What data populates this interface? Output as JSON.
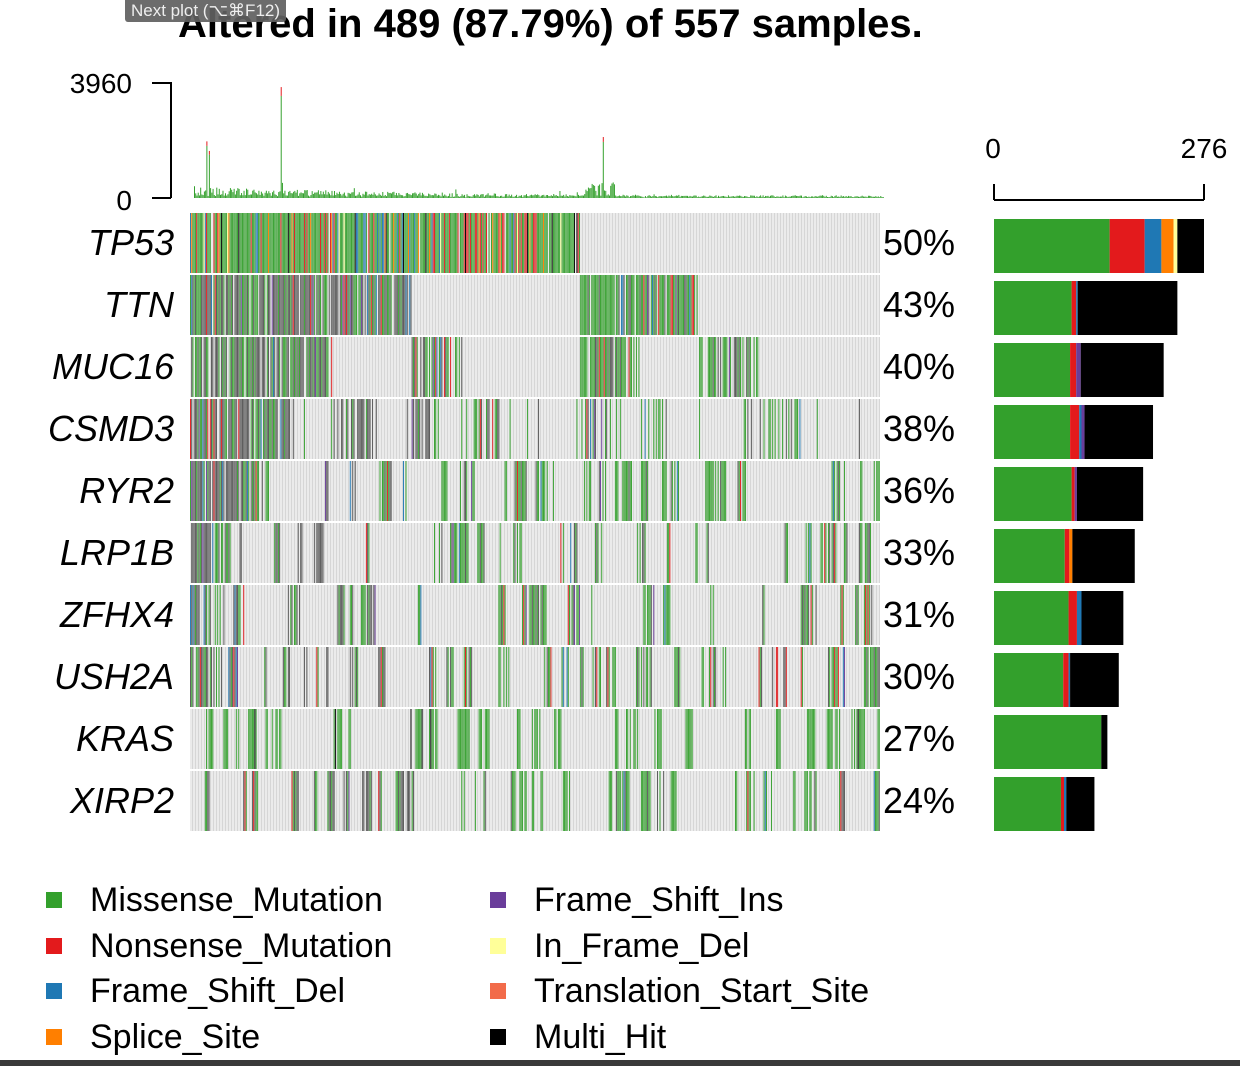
{
  "tooltip": "Next plot (⌥⌘F12)",
  "chart_data": {
    "type": "oncoplot",
    "title": "Altered in 489 (87.79%) of 557 samples.",
    "tmb_axis": {
      "min": 0,
      "max": 3960,
      "tick_labels": [
        "3960",
        "0"
      ]
    },
    "bar_axis": {
      "min": 0,
      "max": 276,
      "tick_labels": [
        "0",
        "276"
      ]
    },
    "genes": [
      {
        "name": "TP53",
        "pct": "50%",
        "pct_value": 50
      },
      {
        "name": "TTN",
        "pct": "43%",
        "pct_value": 43
      },
      {
        "name": "MUC16",
        "pct": "40%",
        "pct_value": 40
      },
      {
        "name": "CSMD3",
        "pct": "38%",
        "pct_value": 38
      },
      {
        "name": "RYR2",
        "pct": "36%",
        "pct_value": 36
      },
      {
        "name": "LRP1B",
        "pct": "33%",
        "pct_value": 33
      },
      {
        "name": "ZFHX4",
        "pct": "31%",
        "pct_value": 31
      },
      {
        "name": "USH2A",
        "pct": "30%",
        "pct_value": 30
      },
      {
        "name": "KRAS",
        "pct": "27%",
        "pct_value": 27
      },
      {
        "name": "XIRP2",
        "pct": "24%",
        "pct_value": 24
      }
    ],
    "gene_bars": [
      [
        {
          "type": "Missense_Mutation",
          "count": 152
        },
        {
          "type": "Nonsense_Mutation",
          "count": 46
        },
        {
          "type": "Frame_Shift_Del",
          "count": 22
        },
        {
          "type": "Splice_Site",
          "count": 16
        },
        {
          "type": "In_Frame_Del",
          "count": 5
        },
        {
          "type": "Multi_Hit",
          "count": 35
        }
      ],
      [
        {
          "type": "Missense_Mutation",
          "count": 102
        },
        {
          "type": "Nonsense_Mutation",
          "count": 6
        },
        {
          "type": "Frame_Shift_Del",
          "count": 2
        },
        {
          "type": "Multi_Hit",
          "count": 131
        }
      ],
      [
        {
          "type": "Missense_Mutation",
          "count": 100
        },
        {
          "type": "Nonsense_Mutation",
          "count": 8
        },
        {
          "type": "Frame_Shift_Ins",
          "count": 6
        },
        {
          "type": "Multi_Hit",
          "count": 109
        }
      ],
      [
        {
          "type": "Missense_Mutation",
          "count": 100
        },
        {
          "type": "Nonsense_Mutation",
          "count": 12
        },
        {
          "type": "Frame_Shift_Del",
          "count": 3
        },
        {
          "type": "Frame_Shift_Ins",
          "count": 4
        },
        {
          "type": "Multi_Hit",
          "count": 90
        }
      ],
      [
        {
          "type": "Missense_Mutation",
          "count": 102
        },
        {
          "type": "Nonsense_Mutation",
          "count": 4
        },
        {
          "type": "Frame_Shift_Ins",
          "count": 3
        },
        {
          "type": "Multi_Hit",
          "count": 87
        }
      ],
      [
        {
          "type": "Missense_Mutation",
          "count": 93
        },
        {
          "type": "Nonsense_Mutation",
          "count": 6
        },
        {
          "type": "Splice_Site",
          "count": 4
        },
        {
          "type": "Multi_Hit",
          "count": 82
        }
      ],
      [
        {
          "type": "Missense_Mutation",
          "count": 98
        },
        {
          "type": "Nonsense_Mutation",
          "count": 11
        },
        {
          "type": "Frame_Shift_Del",
          "count": 6
        },
        {
          "type": "Multi_Hit",
          "count": 55
        }
      ],
      [
        {
          "type": "Missense_Mutation",
          "count": 91
        },
        {
          "type": "Nonsense_Mutation",
          "count": 7
        },
        {
          "type": "Frame_Shift_Del",
          "count": 2
        },
        {
          "type": "Multi_Hit",
          "count": 64
        }
      ],
      [
        {
          "type": "Missense_Mutation",
          "count": 141
        },
        {
          "type": "Multi_Hit",
          "count": 8
        }
      ],
      [
        {
          "type": "Missense_Mutation",
          "count": 88
        },
        {
          "type": "Nonsense_Mutation",
          "count": 4
        },
        {
          "type": "Frame_Shift_Del",
          "count": 3
        },
        {
          "type": "Multi_Hit",
          "count": 37
        }
      ]
    ],
    "legend": [
      {
        "label": "Missense_Mutation",
        "color": "#33a02c"
      },
      {
        "label": "Nonsense_Mutation",
        "color": "#e31a1c"
      },
      {
        "label": "Frame_Shift_Del",
        "color": "#1f78b4"
      },
      {
        "label": "Splice_Site",
        "color": "#ff7f00"
      },
      {
        "label": "Frame_Shift_Ins",
        "color": "#6a3d9a"
      },
      {
        "label": "In_Frame_Del",
        "color": "#ffff99"
      },
      {
        "label": "Translation_Start_Site",
        "color": "#f26b4a"
      },
      {
        "label": "Multi_Hit",
        "color": "#000000"
      }
    ],
    "grid": false
  }
}
